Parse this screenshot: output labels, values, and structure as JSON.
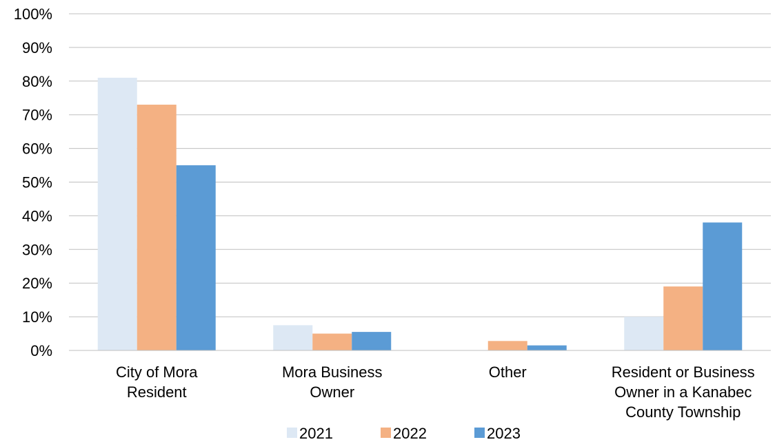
{
  "chart_data": {
    "type": "bar",
    "categories": [
      [
        "City of Mora",
        "Resident"
      ],
      [
        "Mora Business",
        "Owner"
      ],
      [
        "Other"
      ],
      [
        "Resident or Business",
        "Owner in a Kanabec",
        "County Township"
      ]
    ],
    "series": [
      {
        "name": "2021",
        "color": "#dde8f4",
        "values": [
          81,
          7.5,
          0,
          10
        ]
      },
      {
        "name": "2022",
        "color": "#f4b183",
        "values": [
          73,
          5,
          2.8,
          19
        ]
      },
      {
        "name": "2023",
        "color": "#5b9bd5",
        "values": [
          55,
          5.5,
          1.5,
          38
        ]
      }
    ],
    "ylim": [
      0,
      100
    ],
    "yticks": [
      "0%",
      "10%",
      "20%",
      "30%",
      "40%",
      "50%",
      "60%",
      "70%",
      "80%",
      "90%",
      "100%"
    ],
    "grid": true,
    "legend": "bottom"
  }
}
